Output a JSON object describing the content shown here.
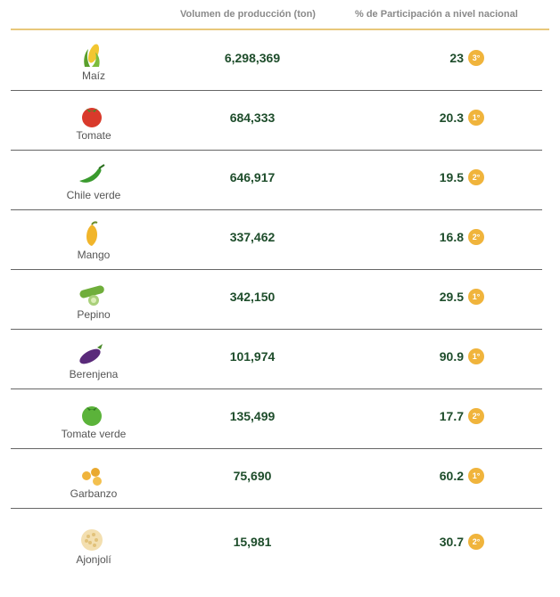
{
  "table": {
    "headers": {
      "volume": "Volumen de producción (ton)",
      "share": "% de Participación a nivel nacional"
    },
    "rows": [
      {
        "crop": "Maíz",
        "icon": "corn-icon",
        "volume": "6,298,369",
        "share": "23",
        "rank": "3°"
      },
      {
        "crop": "Tomate",
        "icon": "tomato-icon",
        "volume": "684,333",
        "share": "20.3",
        "rank": "1°"
      },
      {
        "crop": "Chile verde",
        "icon": "chili-pepper-icon",
        "volume": "646,917",
        "share": "19.5",
        "rank": "2°"
      },
      {
        "crop": "Mango",
        "icon": "mango-icon",
        "volume": "337,462",
        "share": "16.8",
        "rank": "2°"
      },
      {
        "crop": "Pepino",
        "icon": "cucumber-icon",
        "volume": "342,150",
        "share": "29.5",
        "rank": "1°"
      },
      {
        "crop": "Berenjena",
        "icon": "eggplant-icon",
        "volume": "101,974",
        "share": "90.9",
        "rank": "1°"
      },
      {
        "crop": "Tomate verde",
        "icon": "green-tomato-icon",
        "volume": "135,499",
        "share": "17.7",
        "rank": "2°"
      },
      {
        "crop": "Garbanzo",
        "icon": "chickpea-icon",
        "volume": "75,690",
        "share": "60.2",
        "rank": "1°"
      },
      {
        "crop": "Ajonjolí",
        "icon": "sesame-icon",
        "volume": "15,981",
        "share": "30.7",
        "rank": "2°"
      }
    ]
  }
}
